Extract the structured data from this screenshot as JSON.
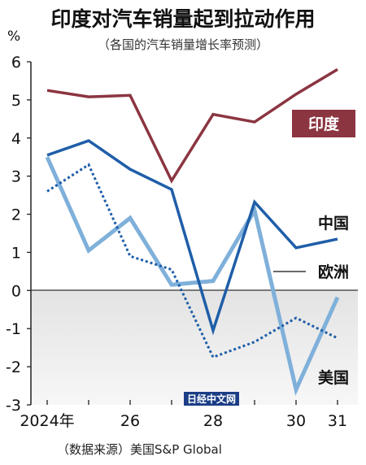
{
  "chart_data": {
    "type": "line",
    "title": "印度对汽车销量起到拉动作用",
    "subtitle": "（各国的汽车销量增长率预测）",
    "ylabel": "%",
    "ylim": [
      -3,
      6
    ],
    "yticks": [
      6,
      5,
      4,
      3,
      2,
      1,
      0,
      -1,
      -2,
      -3
    ],
    "ytick_labels": [
      "6",
      "5",
      "4",
      "3",
      "2",
      "1",
      "0",
      "-1",
      "-2",
      "-3"
    ],
    "x": [
      2024,
      2025,
      2026,
      2027,
      2028,
      2029,
      2030,
      2031
    ],
    "xticks": [
      2024,
      2026,
      2028,
      2030,
      2031
    ],
    "xtick_labels": [
      "2024年",
      "26",
      "28",
      "30",
      "31"
    ],
    "shade_below_zero": true,
    "series": [
      {
        "name": "印度",
        "color": "#8b3540",
        "style": "solid",
        "values": [
          5.25,
          5.08,
          5.12,
          2.88,
          4.62,
          4.42,
          5.15,
          5.8
        ]
      },
      {
        "name": "中国",
        "color": "#1f5ea8",
        "style": "solid",
        "values": [
          3.55,
          3.93,
          3.18,
          2.65,
          -1.05,
          2.32,
          1.12,
          1.35
        ]
      },
      {
        "name": "欧洲",
        "color": "#7fb0da",
        "style": "solid",
        "values": [
          3.5,
          1.05,
          1.9,
          0.15,
          0.25,
          2.1,
          -2.6,
          -0.18
        ]
      },
      {
        "name": "美国",
        "color": "#1f5ea8",
        "style": "dotted",
        "values": [
          2.6,
          3.3,
          0.9,
          0.55,
          -1.75,
          -1.35,
          -0.72,
          -1.25
        ]
      }
    ],
    "source": "（数据来源）美国S&P Global",
    "watermark": "日经中文网"
  }
}
